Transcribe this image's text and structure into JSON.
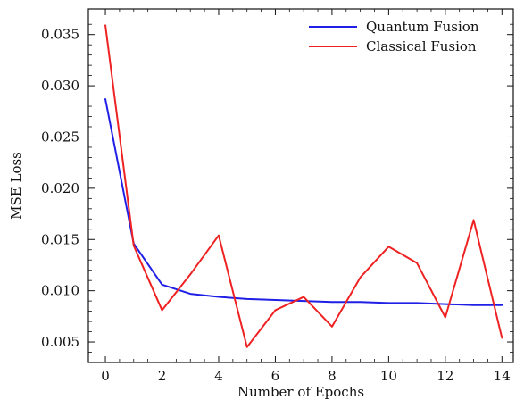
{
  "chart_data": {
    "type": "line",
    "title": "",
    "xlabel": "Number of Epochs",
    "ylabel": "MSE Loss",
    "xlim": [
      -0.6,
      14.4
    ],
    "ylim": [
      0.003,
      0.0375
    ],
    "xticks": [
      0,
      2,
      4,
      6,
      8,
      10,
      12,
      14
    ],
    "yticks": [
      0.005,
      0.01,
      0.015,
      0.02,
      0.025,
      0.03,
      0.035
    ],
    "xtick_labels": [
      "0",
      "2",
      "4",
      "6",
      "8",
      "10",
      "12",
      "14"
    ],
    "ytick_labels": [
      "0.005",
      "0.010",
      "0.015",
      "0.020",
      "0.025",
      "0.030",
      "0.035"
    ],
    "legend_position": "top-right",
    "grid": false,
    "x": [
      0,
      1,
      2,
      3,
      4,
      5,
      6,
      7,
      8,
      9,
      10,
      11,
      12,
      13,
      14
    ],
    "series": [
      {
        "name": "Quantum Fusion",
        "color": "#1f1fe6",
        "values": [
          0.0287,
          0.0146,
          0.0106,
          0.0097,
          0.0094,
          0.0092,
          0.0091,
          0.009,
          0.0089,
          0.0089,
          0.0088,
          0.0088,
          0.0087,
          0.0086,
          0.0086
        ]
      },
      {
        "name": "Classical Fusion",
        "color": "#ee2222",
        "values": [
          0.0359,
          0.0144,
          0.0081,
          0.0116,
          0.0154,
          0.0045,
          0.0081,
          0.0094,
          0.0065,
          0.0113,
          0.0143,
          0.0127,
          0.0074,
          0.0169,
          0.0054
        ]
      }
    ]
  }
}
